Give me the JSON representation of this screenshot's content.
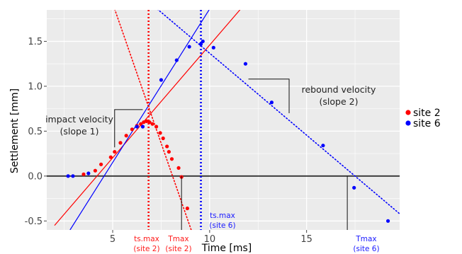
{
  "chart_data": {
    "type": "scatter",
    "xlabel": "Time [ms]",
    "ylabel": "Settlement [mm]",
    "xlim": [
      1.6,
      19.8
    ],
    "ylim": [
      -0.6,
      1.85
    ],
    "x_ticks": [
      5,
      10,
      15
    ],
    "y_ticks": [
      -0.5,
      0.0,
      0.5,
      1.0,
      1.5
    ],
    "y_tick_labels": [
      "-0.5",
      "0.0",
      "0.5",
      "1.0",
      "1.5"
    ],
    "grid": true,
    "legend_position": "right",
    "colors": {
      "site2": "#ff0000",
      "site6": "#0000ff",
      "panel": "#ebebeb",
      "grid": "#ffffff",
      "zero_line": "#333333"
    },
    "series": [
      {
        "name": "site 2",
        "color": "#ff0000",
        "points": [
          [
            3.5,
            0.02
          ],
          [
            4.1,
            0.06
          ],
          [
            4.4,
            0.13
          ],
          [
            4.9,
            0.21
          ],
          [
            5.1,
            0.27
          ],
          [
            5.4,
            0.37
          ],
          [
            5.7,
            0.45
          ],
          [
            6.0,
            0.52
          ],
          [
            6.25,
            0.56
          ],
          [
            6.45,
            0.58
          ],
          [
            6.6,
            0.6
          ],
          [
            6.75,
            0.61
          ],
          [
            6.9,
            0.6
          ],
          [
            7.05,
            0.58
          ],
          [
            7.25,
            0.55
          ],
          [
            7.45,
            0.48
          ],
          [
            7.6,
            0.42
          ],
          [
            7.8,
            0.33
          ],
          [
            7.9,
            0.27
          ],
          [
            8.05,
            0.19
          ],
          [
            8.4,
            0.09
          ],
          [
            8.55,
            -0.01
          ],
          [
            8.85,
            -0.36
          ]
        ]
      },
      {
        "name": "site 6",
        "color": "#0000ff",
        "points": [
          [
            2.7,
            0.0
          ],
          [
            2.95,
            0.0
          ],
          [
            3.75,
            0.03
          ],
          [
            6.25,
            0.55
          ],
          [
            6.55,
            0.55
          ],
          [
            7.5,
            1.07
          ],
          [
            8.3,
            1.29
          ],
          [
            8.95,
            1.44
          ],
          [
            9.55,
            1.47
          ],
          [
            9.65,
            1.5
          ],
          [
            10.2,
            1.43
          ],
          [
            11.85,
            1.25
          ],
          [
            13.2,
            0.82
          ],
          [
            15.85,
            0.34
          ],
          [
            17.45,
            -0.13
          ],
          [
            19.2,
            -0.5
          ]
        ]
      }
    ],
    "lines": [
      {
        "series": "site 2",
        "style": "solid",
        "from": [
          2.0,
          -0.55
        ],
        "to": [
          11.6,
          1.86
        ]
      },
      {
        "series": "site 2",
        "style": "dotted",
        "from": [
          5.1,
          1.86
        ],
        "to": [
          9.05,
          -0.6
        ]
      },
      {
        "series": "site 6",
        "style": "solid",
        "from": [
          2.8,
          -0.6
        ],
        "to": [
          10.0,
          1.86
        ]
      },
      {
        "series": "site 6",
        "style": "dotted",
        "from": [
          7.3,
          1.86
        ],
        "to": [
          19.8,
          -0.42
        ]
      }
    ],
    "vlines": [
      {
        "series": "site 2",
        "style": "dotted",
        "x": 6.85
      },
      {
        "series": "site 6",
        "style": "dotted",
        "x": 9.55
      }
    ],
    "annotations": {
      "impact_line1": "impact velocity",
      "impact_line2": "(slope 1)",
      "rebound_line1": "rebound velocity",
      "rebound_line2": "(slope 2)",
      "ts_max_site2_a": "ts.max",
      "ts_max_site2_b": "(site 2)",
      "tmax_site2_a": "Tmax",
      "tmax_site2_b": "(site 2)",
      "ts_max_site6_a": "ts.max",
      "ts_max_site6_b": "(site 6)",
      "tmax_site6_a": "Tmax",
      "tmax_site6_b": "(site 6)"
    }
  }
}
